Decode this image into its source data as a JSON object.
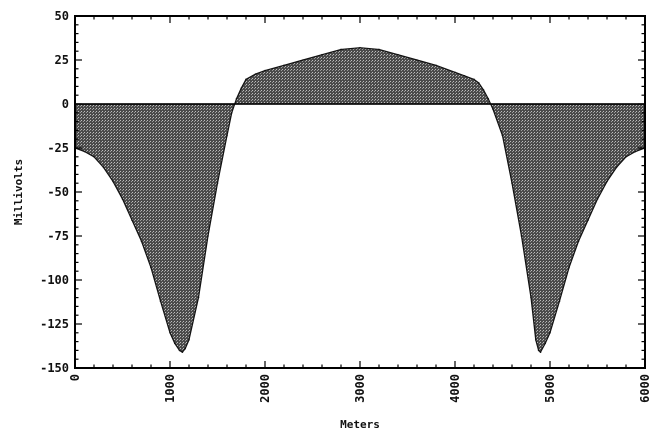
{
  "chart_data": {
    "type": "area",
    "title": "",
    "xlabel": "Meters",
    "ylabel": "Millivolts",
    "xlim": [
      0,
      6000
    ],
    "ylim": [
      -150,
      50
    ],
    "grid": false,
    "x_ticks": [
      0,
      1000,
      2000,
      3000,
      4000,
      5000,
      6000
    ],
    "y_ticks": [
      50,
      25,
      0,
      -25,
      -50,
      -75,
      -100,
      -125,
      -150
    ],
    "x": [
      0,
      100,
      200,
      300,
      400,
      500,
      600,
      700,
      800,
      900,
      1000,
      1050,
      1100,
      1130,
      1160,
      1200,
      1300,
      1400,
      1500,
      1600,
      1650,
      1700,
      1750,
      1800,
      1900,
      2000,
      2200,
      2400,
      2600,
      2800,
      3000,
      3200,
      3400,
      3600,
      3800,
      4000,
      4100,
      4200,
      4250,
      4300,
      4350,
      4400,
      4500,
      4600,
      4700,
      4800,
      4850,
      4880,
      4900,
      4950,
      5000,
      5100,
      5200,
      5300,
      5400,
      5500,
      5600,
      5700,
      5800,
      5900,
      6000
    ],
    "values": [
      -25,
      -27,
      -30,
      -36,
      -44,
      -54,
      -66,
      -78,
      -93,
      -112,
      -130,
      -136,
      -140,
      -141,
      -139,
      -134,
      -110,
      -75,
      -45,
      -18,
      -5,
      3,
      9,
      14,
      17,
      19,
      22,
      25,
      28,
      31,
      32,
      31,
      28,
      25,
      22,
      18,
      16,
      14,
      12,
      8,
      3,
      -3,
      -18,
      -45,
      -75,
      -110,
      -134,
      -140,
      -141,
      -136,
      -130,
      -112,
      -93,
      -78,
      -66,
      -54,
      -44,
      -36,
      -30,
      -27,
      -25
    ]
  }
}
